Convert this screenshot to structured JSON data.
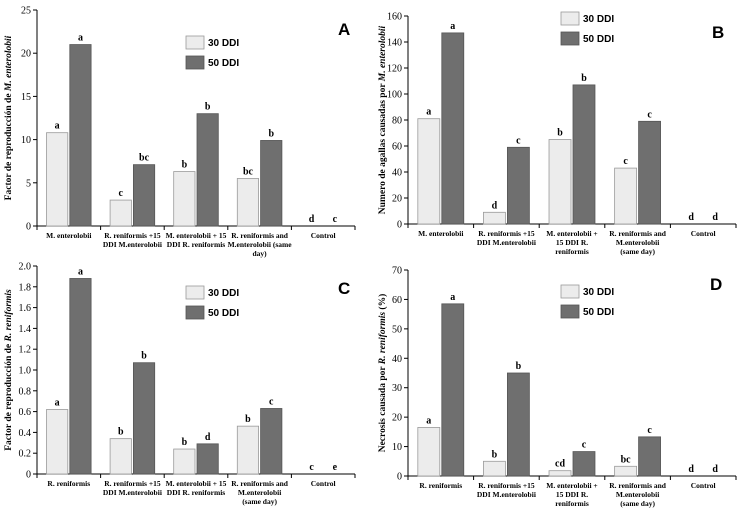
{
  "colors": {
    "series_30": "#ececec",
    "series_50": "#6f6f6f",
    "bar_stroke": "#9a9a9a",
    "axis": "#000000"
  },
  "legend": {
    "series_30": "30 DDI",
    "series_50": "50 DDI"
  },
  "chart_data": [
    {
      "type": "bar",
      "panel": "A",
      "ylabel_pre": "Factor de reproducción de ",
      "ylabel_em": "M. enterolobii",
      "ylim": [
        0,
        25
      ],
      "yticks": [
        "0",
        "5",
        "10",
        "15",
        "20",
        "25"
      ],
      "categories": [
        [
          "M. enterolobii"
        ],
        [
          "R. reniformis +15",
          "DDI M.enterolobii"
        ],
        [
          "M. enterolobii + 15",
          "DDI R. reniformis"
        ],
        [
          "R. reniformis and",
          "M.enterolobii (same",
          "day)"
        ],
        [
          "Control"
        ]
      ],
      "series": [
        {
          "name": "30 DDI",
          "values": [
            10.8,
            3.0,
            6.3,
            5.5,
            0
          ],
          "labels": [
            "a",
            "c",
            "b",
            "bc",
            "d"
          ]
        },
        {
          "name": "50 DDI",
          "values": [
            21.0,
            7.1,
            13.0,
            9.9,
            0
          ],
          "labels": [
            "a",
            "bc",
            "b",
            "b",
            "c"
          ]
        }
      ]
    },
    {
      "type": "bar",
      "panel": "B",
      "ylabel_pre": "Numero de agallas causadas por ",
      "ylabel_em": "M. enterolobii",
      "ylim": [
        0,
        160
      ],
      "yticks": [
        "0",
        "20",
        "40",
        "60",
        "80",
        "100",
        "120",
        "140",
        "160"
      ],
      "categories": [
        [
          "M. enterolobii"
        ],
        [
          "R. reniformis +15",
          "DDI M.enterolobii"
        ],
        [
          "M. enterolobii +",
          "15 DDI R.",
          "reniformis"
        ],
        [
          "R. reniformis and",
          "M.enterolobii",
          "(same day)"
        ],
        [
          "Control"
        ]
      ],
      "series": [
        {
          "name": "30 DDI",
          "values": [
            81,
            9,
            65,
            43,
            0
          ],
          "labels": [
            "a",
            "d",
            "b",
            "c",
            "d"
          ]
        },
        {
          "name": "50 DDI",
          "values": [
            147,
            59,
            107,
            79,
            0
          ],
          "labels": [
            "a",
            "c",
            "b",
            "c",
            "d"
          ]
        }
      ]
    },
    {
      "type": "bar",
      "panel": "C",
      "ylabel_pre": "Factor de reproducción de ",
      "ylabel_em": "R. reniformis",
      "ylim": [
        0,
        2.0
      ],
      "yticks": [
        "0",
        "0.2",
        "0.4",
        "0.6",
        "0.8",
        "1.0",
        "1.2",
        "1.4",
        "1.6",
        "1.8",
        "2.0"
      ],
      "categories": [
        [
          "R. reniformis"
        ],
        [
          "R. reniformis +15",
          "DDI M.enterolobii"
        ],
        [
          "M. enterolobii + 15",
          "DDI R. reniformis"
        ],
        [
          "R. reniformis and",
          "M.enterolobii",
          "(same day)"
        ],
        [
          "Control"
        ]
      ],
      "series": [
        {
          "name": "30 DDI",
          "values": [
            0.62,
            0.34,
            0.24,
            0.46,
            0
          ],
          "labels": [
            "a",
            "b",
            "b",
            "b",
            "c"
          ]
        },
        {
          "name": "50 DDI",
          "values": [
            1.88,
            1.07,
            0.29,
            0.63,
            0
          ],
          "labels": [
            "a",
            "b",
            "d",
            "c",
            "e"
          ]
        }
      ]
    },
    {
      "type": "bar",
      "panel": "D",
      "ylabel_pre": "Necrosis causada por ",
      "ylabel_em": "R. reniformis",
      "ylabel_post": " (%)",
      "ylim": [
        0,
        70
      ],
      "yticks": [
        "0",
        "10",
        "20",
        "30",
        "40",
        "50",
        "60",
        "70"
      ],
      "categories": [
        [
          "R. reniformis"
        ],
        [
          "R. reniformis +15",
          "DDI M.enterolobii"
        ],
        [
          "M. enterolobii +",
          "15 DDI R.",
          "reniformis"
        ],
        [
          "R. reniformis and",
          "M.enterolobii",
          "(same day)"
        ],
        [
          "Control"
        ]
      ],
      "series": [
        {
          "name": "30 DDI",
          "values": [
            16.5,
            5.0,
            1.8,
            3.3,
            0
          ],
          "labels": [
            "a",
            "b",
            "cd",
            "bc",
            "d"
          ]
        },
        {
          "name": "50 DDI",
          "values": [
            58.5,
            35.0,
            8.3,
            13.3,
            0
          ],
          "labels": [
            "a",
            "b",
            "c",
            "c",
            "d"
          ]
        }
      ]
    }
  ]
}
